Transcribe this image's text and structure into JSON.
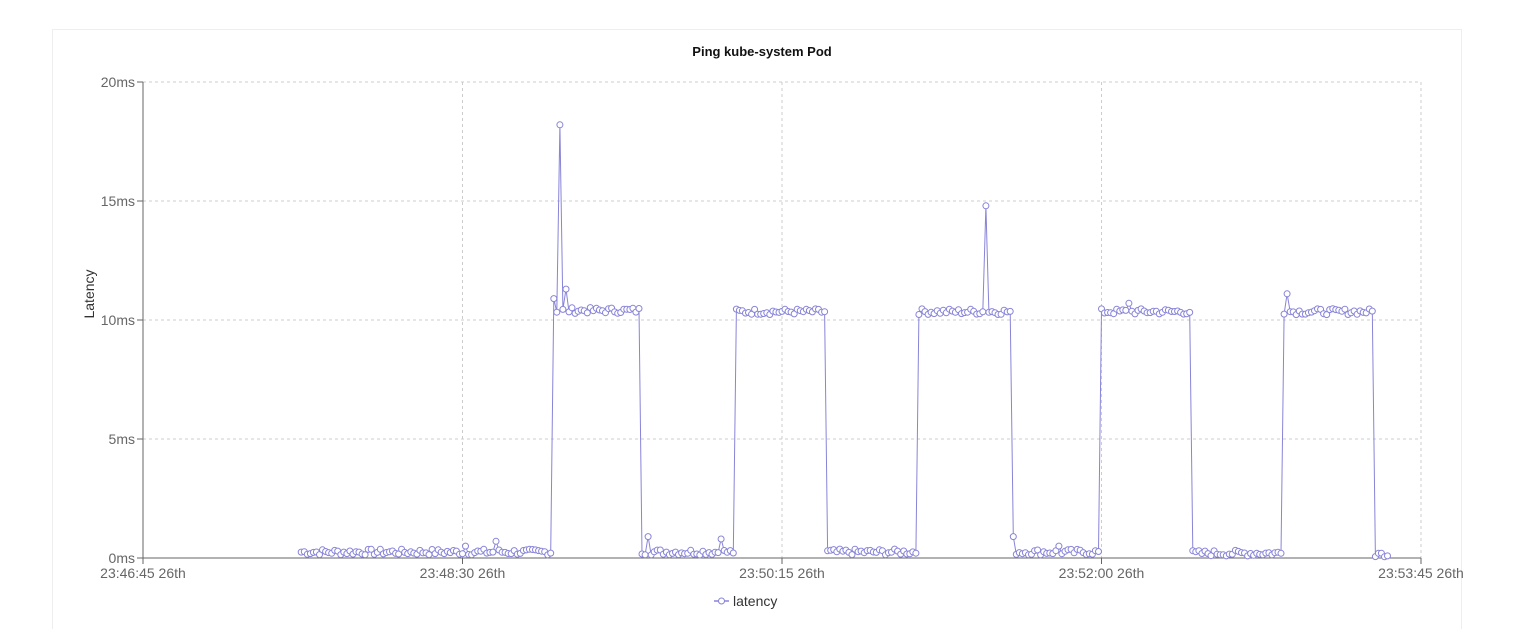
{
  "chart_data": {
    "type": "line",
    "title": "Ping kube-system Pod",
    "ylabel": "Latency",
    "xlabel": "",
    "y_unit": "ms",
    "ylim": [
      0,
      20
    ],
    "y_ticks": [
      0,
      5,
      10,
      15,
      20
    ],
    "y_tick_labels": [
      "0ms",
      "5ms",
      "10ms",
      "15ms",
      "20ms"
    ],
    "xlim": [
      "23:46:45",
      "23:53:45"
    ],
    "x_ticks": [
      "23:46:45",
      "23:48:30",
      "23:50:15",
      "23:52:00",
      "23:53:45"
    ],
    "x_tick_labels": [
      "23:46:45 26th",
      "23:48:30 26th",
      "23:50:15 26th",
      "23:52:00 26th",
      "23:53:45 26th"
    ],
    "grid": true,
    "legend_position": "bottom",
    "colors": {
      "series": "#8884d8",
      "grid": "#cccccc",
      "axis": "#666666"
    },
    "series": [
      {
        "name": "latency",
        "segments": [
          {
            "start": "23:47:37",
            "end": "23:48:59",
            "level": 0.25,
            "spikes": [
              [
                "23:48:31",
                0.5
              ],
              [
                "23:48:41",
                0.7
              ]
            ]
          },
          {
            "start": "23:49:00",
            "end": "23:49:28",
            "level": 10.4,
            "spikes": [
              [
                "23:49:00",
                10.9
              ],
              [
                "23:49:02",
                18.2
              ],
              [
                "23:49:04",
                11.3
              ]
            ]
          },
          {
            "start": "23:49:29",
            "end": "23:49:59",
            "level": 0.25,
            "spikes": [
              [
                "23:49:31",
                0.9
              ],
              [
                "23:49:55",
                0.8
              ]
            ]
          },
          {
            "start": "23:50:00",
            "end": "23:50:29",
            "level": 10.35,
            "spikes": []
          },
          {
            "start": "23:50:30",
            "end": "23:50:59",
            "level": 0.25,
            "spikes": []
          },
          {
            "start": "23:51:00",
            "end": "23:51:30",
            "level": 10.35,
            "spikes": [
              [
                "23:51:22",
                14.8
              ]
            ]
          },
          {
            "start": "23:51:31",
            "end": "23:51:59",
            "level": 0.25,
            "spikes": [
              [
                "23:51:31",
                0.9
              ],
              [
                "23:51:46",
                0.5
              ]
            ]
          },
          {
            "start": "23:52:00",
            "end": "23:52:29",
            "level": 10.35,
            "spikes": [
              [
                "23:52:09",
                10.7
              ]
            ]
          },
          {
            "start": "23:52:30",
            "end": "23:52:59",
            "level": 0.2,
            "spikes": []
          },
          {
            "start": "23:53:00",
            "end": "23:53:29",
            "level": 10.35,
            "spikes": [
              [
                "23:53:01",
                11.1
              ]
            ]
          },
          {
            "start": "23:53:30",
            "end": "23:53:34",
            "level": 0.15,
            "spikes": []
          }
        ]
      }
    ]
  }
}
